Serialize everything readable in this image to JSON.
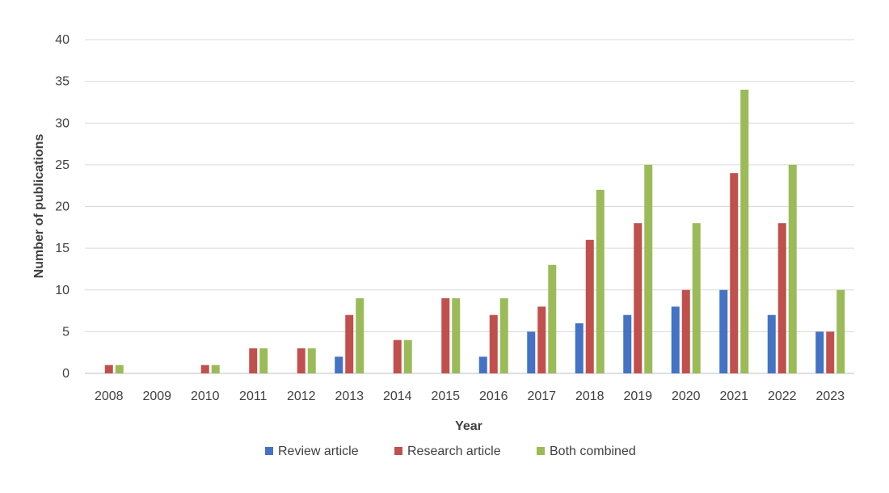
{
  "chart_data": {
    "type": "bar",
    "title": "",
    "xlabel": "Year",
    "ylabel": "Number of publications",
    "categories": [
      "2008",
      "2009",
      "2010",
      "2011",
      "2012",
      "2013",
      "2014",
      "2015",
      "2016",
      "2017",
      "2018",
      "2019",
      "2020",
      "2021",
      "2022",
      "2023"
    ],
    "series": [
      {
        "name": "Review article",
        "color": "#4472c4",
        "values": [
          0,
          0,
          0,
          0,
          0,
          2,
          0,
          0,
          2,
          5,
          6,
          7,
          8,
          10,
          7,
          5
        ]
      },
      {
        "name": "Research article",
        "color": "#c0504d",
        "values": [
          1,
          0,
          1,
          3,
          3,
          7,
          4,
          9,
          7,
          8,
          16,
          18,
          10,
          24,
          18,
          5
        ]
      },
      {
        "name": "Both combined",
        "color": "#9bbb59",
        "values": [
          1,
          0,
          1,
          3,
          3,
          9,
          4,
          9,
          9,
          13,
          22,
          25,
          18,
          34,
          25,
          10
        ]
      }
    ],
    "ylim": [
      0,
      40
    ],
    "yticks": [
      0,
      5,
      10,
      15,
      20,
      25,
      30,
      35,
      40
    ],
    "grid": true,
    "legend_position": "bottom"
  }
}
